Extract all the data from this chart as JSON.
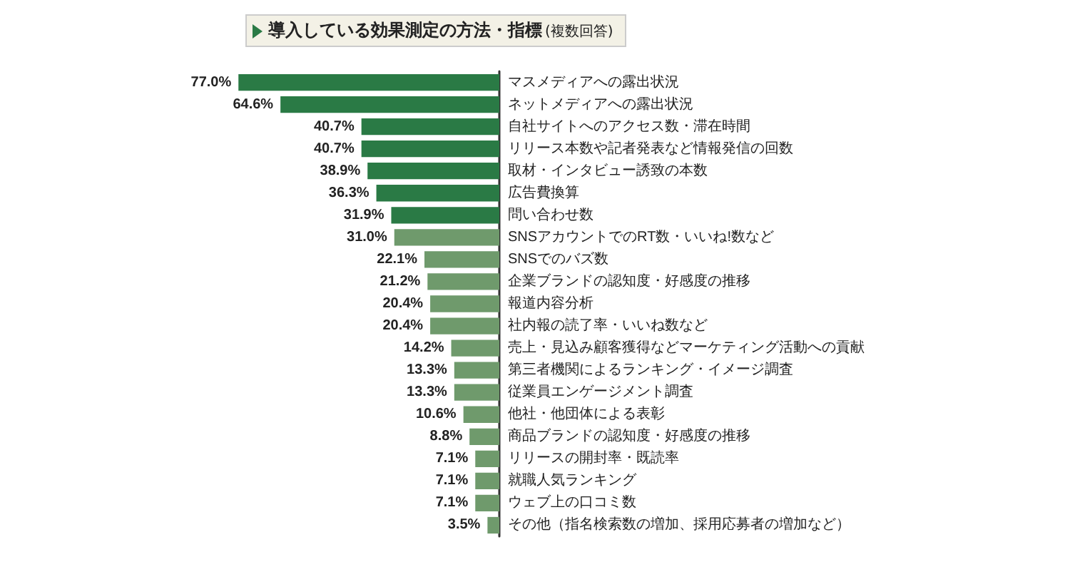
{
  "chart_data": {
    "type": "bar",
    "orientation": "horizontal",
    "title": "導入している効果測定の方法・指標",
    "subtitle": "(複数回答)",
    "categories": [
      "マスメディアへの露出状況",
      "ネットメディアへの露出状況",
      "自社サイトへのアクセス数・滞在時間",
      "リリース本数や記者発表など情報発信の回数",
      "取材・インタビュー誘致の本数",
      "広告費換算",
      "問い合わせ数",
      "SNSアカウントでのRT数・いいね!数など",
      "SNSでのバズ数",
      "企業ブランドの認知度・好感度の推移",
      "報道内容分析",
      "社内報の読了率・いいね数など",
      "売上・見込み顧客獲得などマーケティング活動への貢献",
      "第三者機関によるランキング・イメージ調査",
      "従業員エンゲージメント調査",
      "他社・他団体による表彰",
      "商品ブランドの認知度・好感度の推移",
      "リリースの開封率・既読率",
      "就職人気ランキング",
      "ウェブ上の口コミ数",
      "その他（指名検索数の増加、採用応募者の増加など）"
    ],
    "values": [
      77.0,
      64.6,
      40.7,
      40.7,
      38.9,
      36.3,
      31.9,
      31.0,
      22.1,
      21.2,
      20.4,
      20.4,
      14.2,
      13.3,
      13.3,
      10.6,
      8.8,
      7.1,
      7.1,
      7.1,
      3.5
    ],
    "value_labels": [
      "77.0%",
      "64.6%",
      "40.7%",
      "40.7%",
      "38.9%",
      "36.3%",
      "31.9%",
      "31.0%",
      "22.1%",
      "21.2%",
      "20.4%",
      "20.4%",
      "14.2%",
      "13.3%",
      "13.3%",
      "10.6%",
      "8.8%",
      "7.1%",
      "7.1%",
      "7.1%",
      "3.5%"
    ],
    "colors": [
      "#2a7a45",
      "#2a7a45",
      "#2a7a45",
      "#2a7a45",
      "#2a7a45",
      "#2a7a45",
      "#2a7a45",
      "#6f9a6c",
      "#6f9a6c",
      "#6f9a6c",
      "#6f9a6c",
      "#6f9a6c",
      "#6f9a6c",
      "#6f9a6c",
      "#6f9a6c",
      "#6f9a6c",
      "#6f9a6c",
      "#6f9a6c",
      "#6f9a6c",
      "#6f9a6c",
      "#6f9a6c"
    ],
    "tick_labels": "y",
    "grid": false
  }
}
